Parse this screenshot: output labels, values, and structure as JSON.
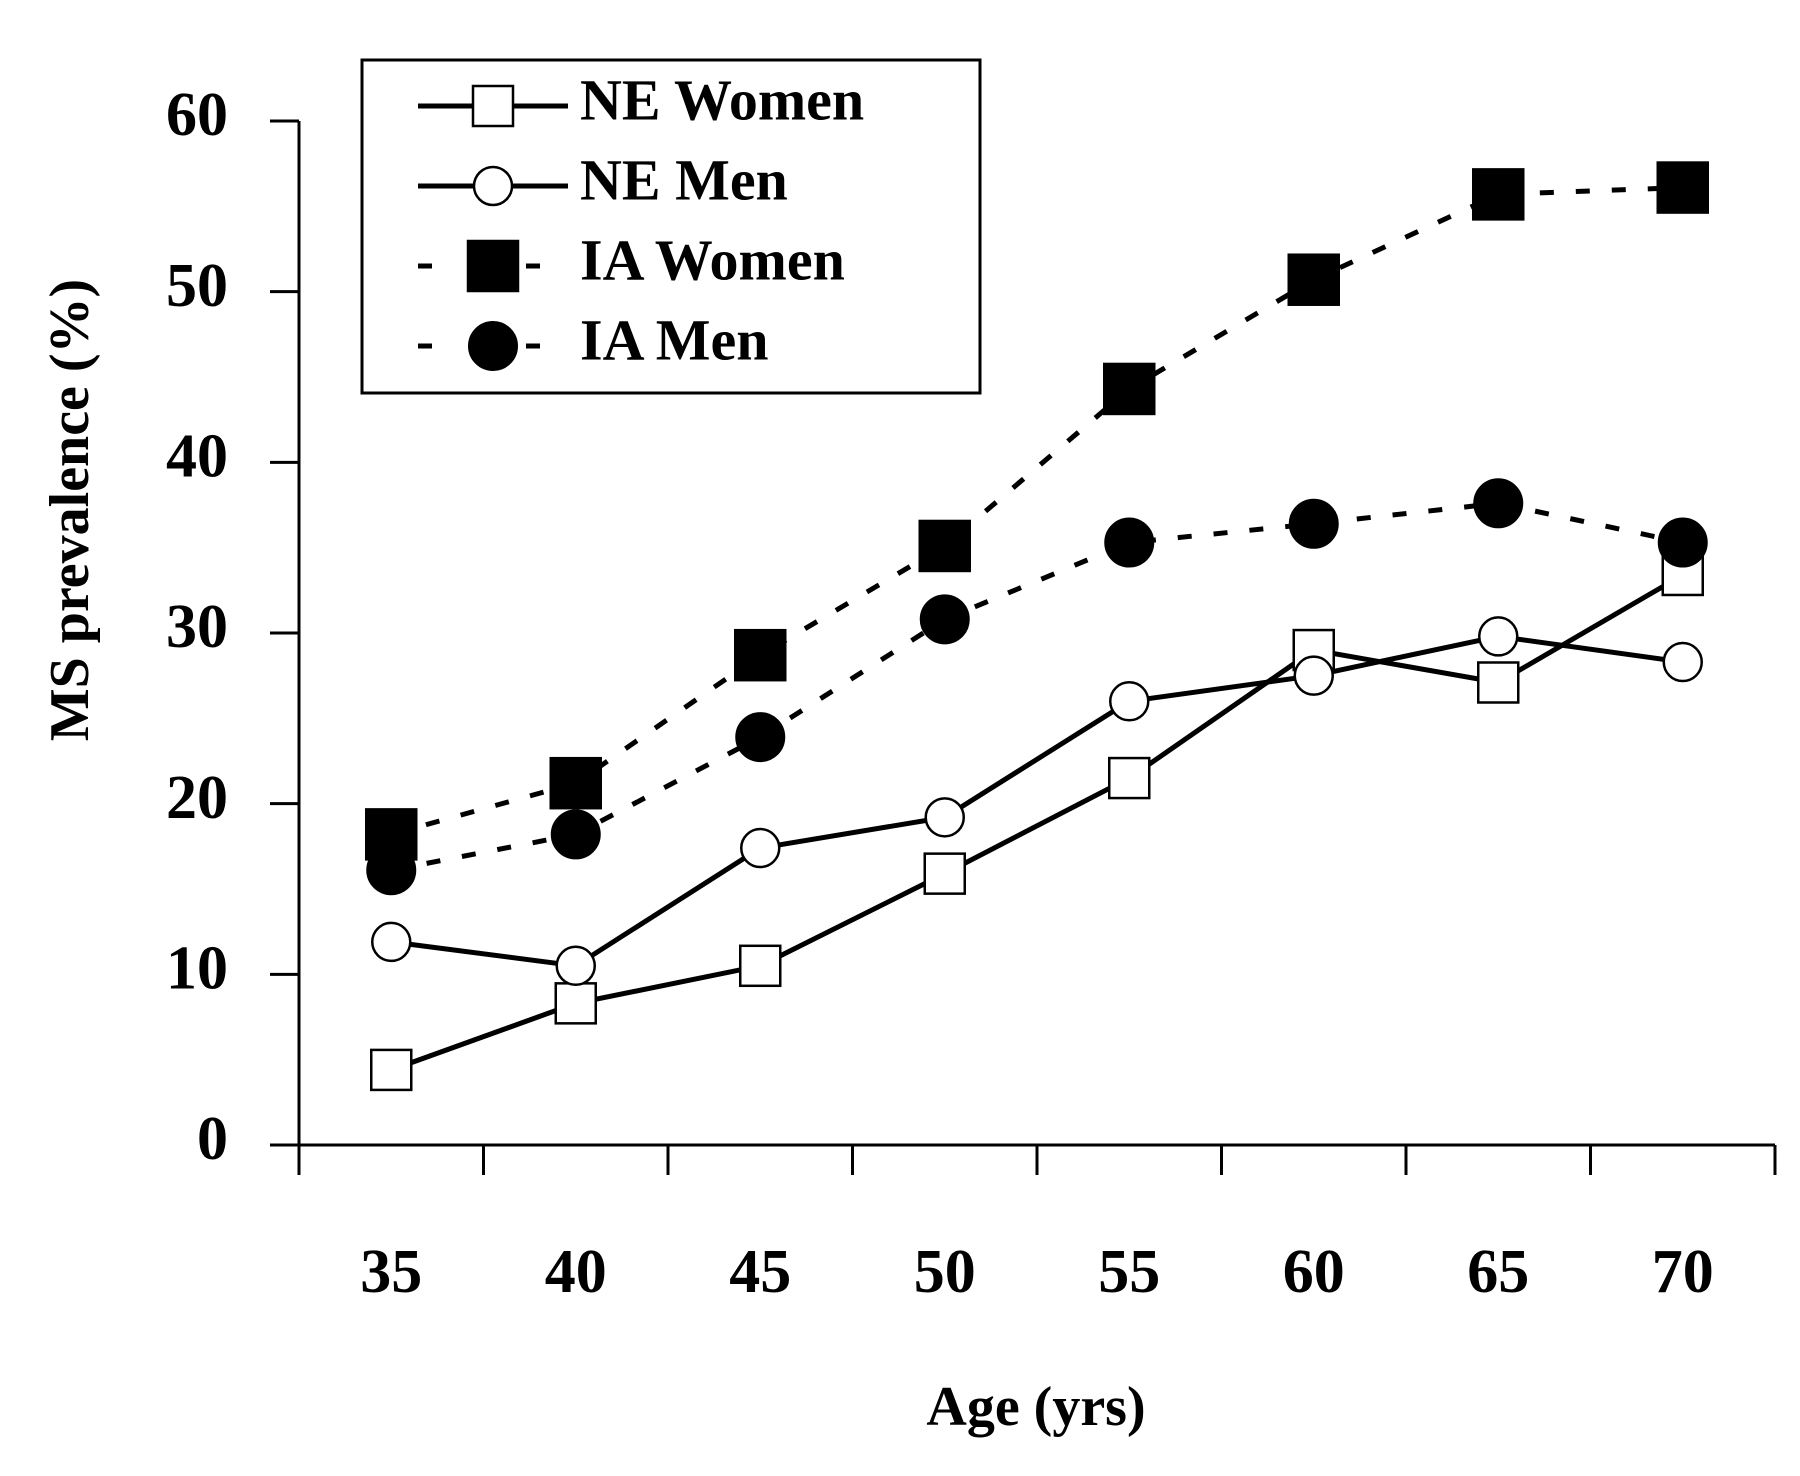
{
  "chart_data": {
    "type": "line",
    "x_label": "Age (yrs)",
    "y_label": "MS prevalence (%)",
    "categories": [
      "35",
      "40",
      "45",
      "50",
      "55",
      "60",
      "65",
      "70"
    ],
    "ylim": [
      0,
      60
    ],
    "yticks": [
      0,
      10,
      20,
      30,
      40,
      50,
      60
    ],
    "legend": "top-left",
    "series": [
      {
        "name": "NE Women",
        "color": "#000000",
        "line": "solid",
        "marker": "square",
        "marker_fill": "#ffffff",
        "values": [
          4.4,
          8.3,
          10.5,
          15.9,
          21.5,
          29.0,
          27.1,
          33.4
        ]
      },
      {
        "name": "NE Men",
        "color": "#000000",
        "line": "solid",
        "marker": "circle",
        "marker_fill": "#ffffff",
        "values": [
          11.9,
          10.5,
          17.4,
          19.2,
          26.0,
          27.5,
          29.8,
          28.3
        ]
      },
      {
        "name": "IA Women",
        "color": "#000000",
        "line": "dashed",
        "marker": "square",
        "marker_fill": "#000000",
        "values": [
          18.2,
          21.2,
          28.7,
          35.1,
          44.3,
          50.7,
          55.7,
          56.1
        ]
      },
      {
        "name": "IA Men",
        "color": "#000000",
        "line": "dashed",
        "marker": "circle",
        "marker_fill": "#000000",
        "values": [
          16.1,
          18.2,
          23.9,
          30.8,
          35.3,
          36.4,
          37.6,
          35.3
        ]
      }
    ]
  }
}
